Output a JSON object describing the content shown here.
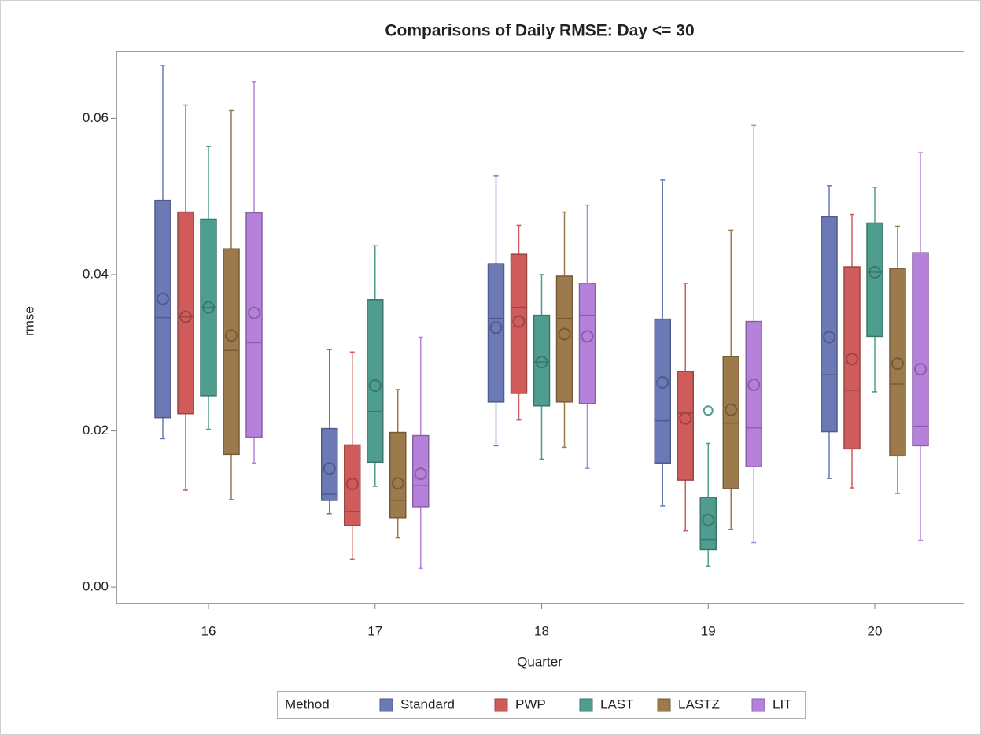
{
  "chart_data": {
    "type": "box",
    "title": "Comparisons of Daily RMSE: Day <= 30",
    "x_label": "Quarter",
    "y_label": "rmse",
    "categories": [
      "16",
      "17",
      "18",
      "19",
      "20"
    ],
    "ylim": [
      -0.0021,
      0.0686
    ],
    "yticks": [
      {
        "value": 0,
        "label": "0.00"
      },
      0.02,
      0.04,
      0.06
    ],
    "grid": false,
    "legend_title": "Method",
    "legend_position": "bottom",
    "series": [
      {
        "name": "Standard",
        "color": "#6b79b6",
        "min": [
          0.019,
          0.0094,
          0.0181,
          0.0104,
          0.0139
        ],
        "q1": [
          0.0217,
          0.0111,
          0.0237,
          0.0159,
          0.0199
        ],
        "median": [
          0.0345,
          0.0119,
          0.0344,
          0.0213,
          0.0272
        ],
        "q3": [
          0.0495,
          0.0203,
          0.0414,
          0.0343,
          0.0474
        ],
        "max": [
          0.0668,
          0.0304,
          0.0526,
          0.0521,
          0.0514
        ],
        "mean": [
          0.0369,
          0.0152,
          0.0332,
          0.0262,
          0.032
        ]
      },
      {
        "name": "PWP",
        "color": "#d05b5b",
        "min": [
          0.0124,
          0.0036,
          0.0214,
          0.0072,
          0.0127
        ],
        "q1": [
          0.0222,
          0.0079,
          0.0248,
          0.0137,
          0.0177
        ],
        "median": [
          0.0346,
          0.0097,
          0.0358,
          0.0223,
          0.0252
        ],
        "q3": [
          0.048,
          0.0182,
          0.0426,
          0.0276,
          0.041
        ],
        "max": [
          0.0617,
          0.0301,
          0.0463,
          0.0389,
          0.0477
        ],
        "mean": [
          0.0346,
          0.0132,
          0.034,
          0.0216,
          0.0292
        ]
      },
      {
        "name": "LAST",
        "color": "#4f9d8f",
        "min": [
          0.0202,
          0.0129,
          0.0164,
          0.0027,
          0.025
        ],
        "q1": [
          0.0245,
          0.016,
          0.0232,
          0.0048,
          0.0321
        ],
        "median": [
          0.0358,
          0.0225,
          0.0288,
          0.0061,
          0.0403
        ],
        "q3": [
          0.0471,
          0.0368,
          0.0348,
          0.0115,
          0.0466
        ],
        "max": [
          0.0564,
          0.0437,
          0.04,
          0.0184,
          0.0512
        ],
        "mean": [
          0.0358,
          0.0258,
          0.0288,
          0.0086,
          0.0403
        ],
        "outliers": [
          null,
          null,
          null,
          0.0226,
          null
        ]
      },
      {
        "name": "LASTZ",
        "color": "#9c7a4c",
        "min": [
          0.0112,
          0.0063,
          0.0179,
          0.0074,
          0.012
        ],
        "q1": [
          0.017,
          0.0089,
          0.0237,
          0.0126,
          0.0168
        ],
        "median": [
          0.0303,
          0.0111,
          0.0344,
          0.021,
          0.026
        ],
        "q3": [
          0.0433,
          0.0198,
          0.0398,
          0.0295,
          0.0408
        ],
        "max": [
          0.061,
          0.0253,
          0.048,
          0.0457,
          0.0462
        ],
        "mean": [
          0.0322,
          0.0133,
          0.0324,
          0.0227,
          0.0286
        ]
      },
      {
        "name": "LIT",
        "color": "#b581db",
        "min": [
          0.0159,
          0.0024,
          0.0152,
          0.0057,
          0.006
        ],
        "q1": [
          0.0192,
          0.0103,
          0.0235,
          0.0154,
          0.0181
        ],
        "median": [
          0.0313,
          0.013,
          0.0348,
          0.0204,
          0.0206
        ],
        "q3": [
          0.0479,
          0.0194,
          0.0389,
          0.034,
          0.0428
        ],
        "max": [
          0.0647,
          0.032,
          0.0489,
          0.0591,
          0.0556
        ],
        "mean": [
          0.0351,
          0.0145,
          0.0321,
          0.0259,
          0.0279
        ]
      }
    ]
  }
}
